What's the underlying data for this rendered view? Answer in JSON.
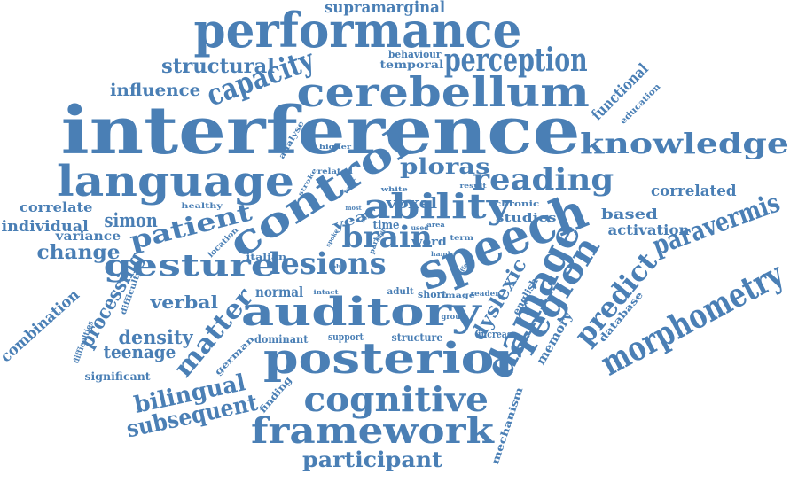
{
  "colors": {
    "word": "#4a7fb5",
    "background": "#ffffff"
  },
  "words": [
    "interference",
    "performance",
    "cerebellum",
    "language",
    "control",
    "perception",
    "capacity",
    "supramarginal",
    "structural",
    "temporal",
    "behaviour",
    "influence",
    "functional",
    "education",
    "knowledge",
    "higher",
    "analyse",
    "stroke",
    "related",
    "task",
    "white",
    "result",
    "chronic",
    "ploras",
    "reading",
    "ability",
    "correlated",
    "correlate",
    "healthy",
    "simon",
    "individual",
    "variance",
    "change",
    "patient",
    "year",
    "brain",
    "voxel",
    "studies",
    "speech",
    "paravermis",
    "based",
    "activation",
    "gesture",
    "lesions",
    "damage",
    "region",
    "predict",
    "morphometry",
    "italian",
    "location",
    "difficulty",
    "combination",
    "difficulties",
    "processing",
    "verbal",
    "normal",
    "density",
    "matter",
    "teenage",
    "german",
    "auditory",
    "dyslexic",
    "english",
    "memory",
    "database",
    "posterior",
    "dominant",
    "support",
    "structure",
    "increase",
    "significant",
    "bilingual",
    "subsequent",
    "finding",
    "cognitive",
    "framework",
    "participant",
    "mechanism",
    "intact",
    "adult",
    "short",
    "image",
    "reader",
    "group",
    "word",
    "term",
    "hand",
    "used",
    "time",
    "most",
    "site",
    "spoke",
    "lobe",
    "part",
    "effect",
    "area",
    "digit"
  ]
}
